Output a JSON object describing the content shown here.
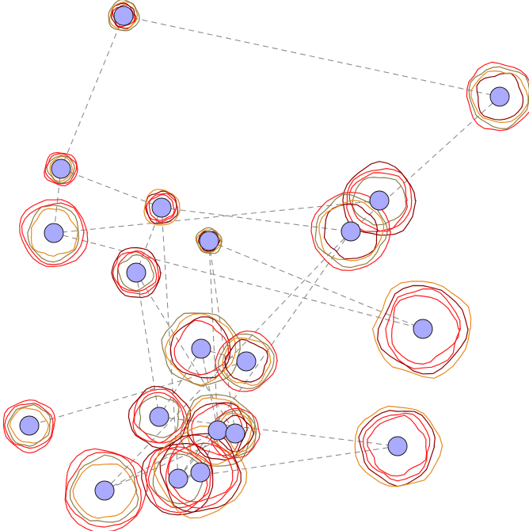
{
  "colors": {
    "node_fill": "#aaaaff",
    "node_stroke": "#1a1a1a",
    "edge": "#8c8c8c",
    "ring_red": "#ff1a1a",
    "ring_darkred": "#8b0000",
    "ring_orange": "#e88a1a",
    "ring_olive": "#8b7d4a"
  },
  "nodes": [
    {
      "id": 0,
      "ring_level": 0.2
    },
    {
      "id": 1,
      "ring_level": 0.9
    },
    {
      "id": 2,
      "ring_level": 0.25
    },
    {
      "id": 3,
      "ring_level": 1.0
    },
    {
      "id": 4,
      "ring_level": 0.3
    },
    {
      "id": 5,
      "ring_level": 0.1
    },
    {
      "id": 6,
      "ring_level": 1.1
    },
    {
      "id": 7,
      "ring_level": 0.9
    },
    {
      "id": 8,
      "ring_level": 0.55
    },
    {
      "id": 9,
      "ring_level": 1.45
    },
    {
      "id": 10,
      "ring_level": 1.05
    },
    {
      "id": 11,
      "ring_level": 0.75
    },
    {
      "id": 12,
      "ring_level": 0.6
    },
    {
      "id": 13,
      "ring_level": 0.75
    },
    {
      "id": 14,
      "ring_level": 1.2
    },
    {
      "id": 15,
      "ring_level": 1.0
    },
    {
      "id": 16,
      "ring_level": 0.55
    },
    {
      "id": 17,
      "ring_level": 1.2
    },
    {
      "id": 18,
      "ring_level": 1.0
    },
    {
      "id": 19,
      "ring_level": 1.3
    }
  ],
  "edges": [
    [
      0,
      1
    ],
    [
      0,
      2
    ],
    [
      2,
      4
    ],
    [
      2,
      7
    ],
    [
      3,
      7
    ],
    [
      4,
      6
    ],
    [
      4,
      8
    ],
    [
      5,
      9
    ],
    [
      5,
      15
    ],
    [
      5,
      16
    ],
    [
      6,
      17
    ],
    [
      6,
      18
    ],
    [
      8,
      13
    ],
    [
      8,
      16
    ],
    [
      1,
      6
    ],
    [
      7,
      9
    ],
    [
      10,
      11
    ],
    [
      11,
      12
    ],
    [
      10,
      13
    ],
    [
      13,
      14
    ],
    [
      15,
      17
    ],
    [
      16,
      17
    ],
    [
      14,
      18
    ],
    [
      19,
      18
    ],
    [
      19,
      15
    ],
    [
      15,
      18
    ],
    [
      4,
      18
    ],
    [
      10,
      15
    ]
  ]
}
